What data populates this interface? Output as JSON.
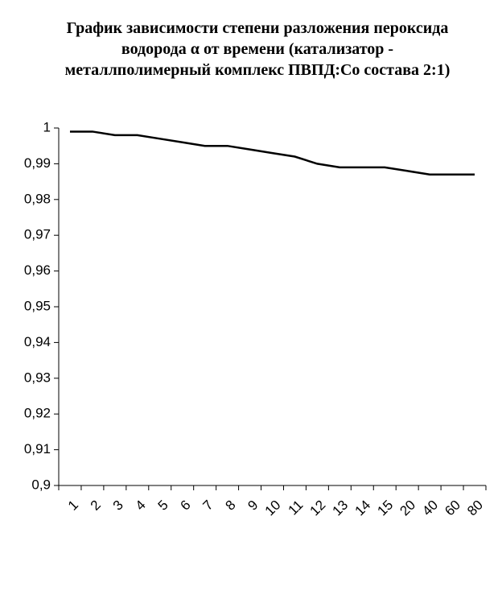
{
  "chart_data": {
    "type": "line",
    "title": "График зависимости степени разложения пероксида водорода α от времени (катализатор - металлполимерный комплекс ПВПД:Co состава 2:1)",
    "categories": [
      "1",
      "2",
      "3",
      "4",
      "5",
      "6",
      "7",
      "8",
      "9",
      "10",
      "11",
      "12",
      "13",
      "14",
      "15",
      "20",
      "40",
      "60",
      "80"
    ],
    "series": [
      {
        "name": "α",
        "color": "#000000",
        "values": [
          0.999,
          0.999,
          0.998,
          0.998,
          0.997,
          0.996,
          0.995,
          0.995,
          0.994,
          0.993,
          0.992,
          0.99,
          0.989,
          0.989,
          0.989,
          0.988,
          0.987,
          0.987,
          0.987
        ]
      }
    ],
    "ylim": [
      0.9,
      1
    ],
    "yticks": [
      {
        "value": 0.9,
        "label": "0,9"
      },
      {
        "value": 0.91,
        "label": "0,91"
      },
      {
        "value": 0.92,
        "label": "0,92"
      },
      {
        "value": 0.93,
        "label": "0,93"
      },
      {
        "value": 0.94,
        "label": "0,94"
      },
      {
        "value": 0.95,
        "label": "0,95"
      },
      {
        "value": 0.96,
        "label": "0,96"
      },
      {
        "value": 0.97,
        "label": "0,97"
      },
      {
        "value": 0.98,
        "label": "0,98"
      },
      {
        "value": 0.99,
        "label": "0,99"
      },
      1
    ],
    "grid": false
  }
}
